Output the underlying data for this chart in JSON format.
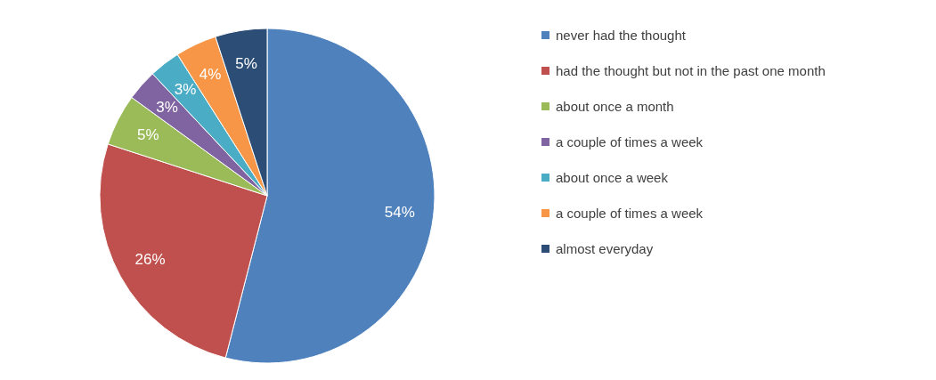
{
  "chart_data": {
    "type": "pie",
    "categories": [
      "never had the thought",
      "had the thought but not in the past one month",
      "about once a month",
      "a couple of times a week",
      "about once a week",
      "a couple of times a week",
      "almost everyday"
    ],
    "values": [
      54,
      26,
      5,
      3,
      3,
      4,
      5
    ],
    "colors": [
      "#4f81bd",
      "#c0504d",
      "#9bbb59",
      "#8064a2",
      "#4bacc6",
      "#f79646",
      "#2c4d75"
    ],
    "value_labels": [
      "54%",
      "26%",
      "5%",
      "3%",
      "3%",
      "4%",
      "5%"
    ],
    "legend": "right"
  }
}
